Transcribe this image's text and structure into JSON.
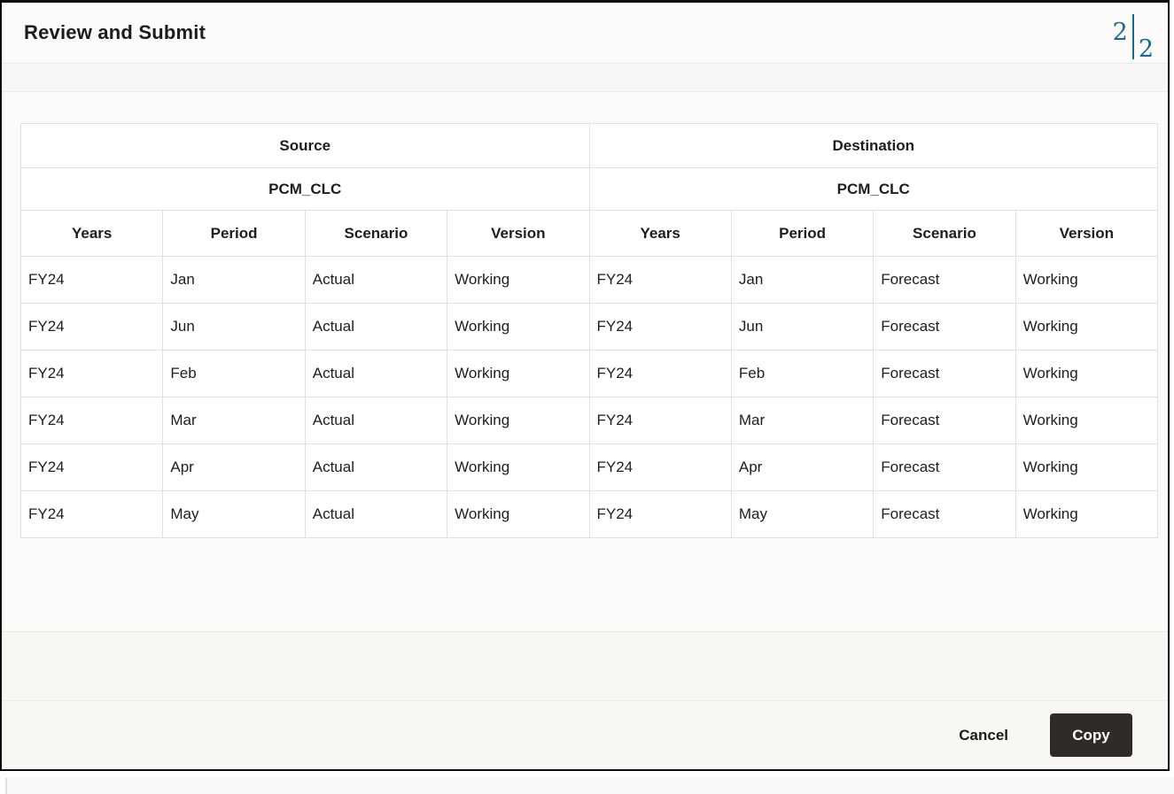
{
  "dialog": {
    "title": "Review and Submit",
    "page_indicator": {
      "current": "2",
      "total": "2",
      "color": "#1a6b87"
    }
  },
  "table": {
    "groups": [
      {
        "label": "Source",
        "application": "PCM_CLC"
      },
      {
        "label": "Destination",
        "application": "PCM_CLC"
      }
    ],
    "columns": [
      "Years",
      "Period",
      "Scenario",
      "Version"
    ],
    "rows": [
      {
        "source": [
          "FY24",
          "Jan",
          "Actual",
          "Working"
        ],
        "destination": [
          "FY24",
          "Jan",
          "Forecast",
          "Working"
        ]
      },
      {
        "source": [
          "FY24",
          "Jun",
          "Actual",
          "Working"
        ],
        "destination": [
          "FY24",
          "Jun",
          "Forecast",
          "Working"
        ]
      },
      {
        "source": [
          "FY24",
          "Feb",
          "Actual",
          "Working"
        ],
        "destination": [
          "FY24",
          "Feb",
          "Forecast",
          "Working"
        ]
      },
      {
        "source": [
          "FY24",
          "Mar",
          "Actual",
          "Working"
        ],
        "destination": [
          "FY24",
          "Mar",
          "Forecast",
          "Working"
        ]
      },
      {
        "source": [
          "FY24",
          "Apr",
          "Actual",
          "Working"
        ],
        "destination": [
          "FY24",
          "Apr",
          "Forecast",
          "Working"
        ]
      },
      {
        "source": [
          "FY24",
          "May",
          "Actual",
          "Working"
        ],
        "destination": [
          "FY24",
          "May",
          "Forecast",
          "Working"
        ]
      }
    ]
  },
  "footer": {
    "cancel_label": "Cancel",
    "copy_label": "Copy",
    "copy_button_color": "#2f2b27"
  }
}
